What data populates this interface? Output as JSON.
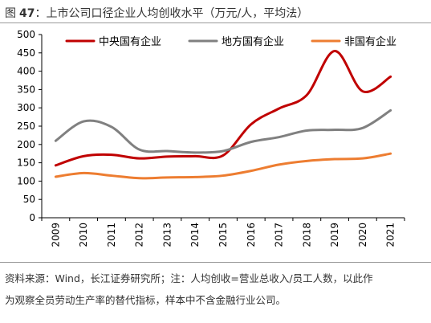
{
  "figure": {
    "label": "图",
    "number": "47",
    "title": "上市公司口径企业人均创收水平（万元/人，平均法）"
  },
  "notes": {
    "line1": "资料来源：Wind，长江证券研究所；注：人均创收=营业总收入/员工人数，以此作",
    "line2": "为观察全员劳动生产率的替代指标，样本中不含金融行业公司。"
  },
  "colors": {
    "central": "#c00000",
    "local": "#808080",
    "nonstate": "#ed7d31",
    "axis": "#000000"
  },
  "chart_data": {
    "type": "line",
    "x": [
      "2009",
      "2010",
      "2011",
      "2012",
      "2013",
      "2014",
      "2015",
      "2016",
      "2017",
      "2018",
      "2019",
      "2020",
      "2021"
    ],
    "ylim": [
      0,
      500
    ],
    "yticks": [
      "0",
      "50",
      "100",
      "150",
      "200",
      "250",
      "300",
      "350",
      "400",
      "450",
      "500"
    ],
    "grid": false,
    "legend_position": "top",
    "series": [
      {
        "name": "中央国有企业",
        "color": "#c00000",
        "values": [
          143,
          168,
          172,
          162,
          167,
          168,
          170,
          255,
          298,
          335,
          455,
          345,
          385
        ]
      },
      {
        "name": "地方国有企业",
        "color": "#808080",
        "values": [
          210,
          263,
          248,
          186,
          182,
          178,
          182,
          207,
          220,
          238,
          240,
          245,
          293
        ]
      },
      {
        "name": "非国有企业",
        "color": "#ed7d31",
        "values": [
          112,
          122,
          115,
          108,
          110,
          111,
          115,
          128,
          145,
          155,
          160,
          162,
          175
        ]
      }
    ]
  }
}
